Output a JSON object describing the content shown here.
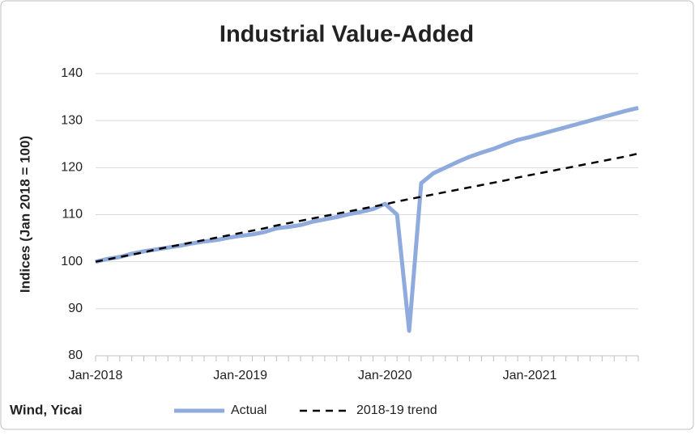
{
  "chart_data": {
    "type": "line",
    "title": "Industrial Value-Added",
    "y_label": "Indices (Jan 2018 = 100)",
    "source": "Wind, Yicai",
    "categories": [
      "Jan-2018",
      null,
      null,
      null,
      null,
      null,
      null,
      null,
      null,
      null,
      null,
      null,
      "Jan-2019",
      null,
      null,
      null,
      null,
      null,
      null,
      null,
      null,
      null,
      null,
      null,
      "Jan-2020",
      null,
      null,
      null,
      null,
      null,
      null,
      null,
      null,
      null,
      null,
      null,
      "Jan-2021",
      null,
      null,
      null,
      null,
      null,
      null,
      null,
      null,
      null
    ],
    "series": [
      {
        "name": "Actual",
        "color": "#8faadc",
        "style": "solid",
        "values": [
          100,
          100.6,
          101,
          101.7,
          102.2,
          102.6,
          103,
          103.4,
          103.9,
          104.3,
          104.6,
          105.1,
          105.5,
          105.8,
          106.3,
          107.1,
          107.4,
          107.8,
          108.5,
          109,
          109.5,
          110.1,
          110.6,
          111.2,
          112.3,
          110,
          85.3,
          116.7,
          118.8,
          120,
          121.2,
          122.3,
          123.2,
          124,
          125,
          125.9,
          126.5,
          127.2,
          127.9,
          128.6,
          129.3,
          130,
          130.7,
          131.4,
          132.1,
          132.7
        ]
      },
      {
        "name": "2018-19 trend",
        "color": "#000000",
        "style": "dashed",
        "values": [
          100.0,
          100.5,
          101.0,
          101.5,
          102.0,
          102.6,
          103.1,
          103.6,
          104.1,
          104.6,
          105.1,
          105.6,
          106.1,
          106.6,
          107.1,
          107.7,
          108.2,
          108.7,
          109.2,
          109.7,
          110.2,
          110.7,
          111.2,
          111.7,
          112.2,
          112.8,
          113.3,
          113.8,
          114.3,
          114.8,
          115.3,
          115.8,
          116.3,
          116.8,
          117.3,
          117.9,
          118.4,
          118.9,
          119.4,
          119.9,
          120.4,
          120.9,
          121.4,
          121.9,
          122.4,
          123.0
        ]
      }
    ],
    "ylim": [
      80,
      140
    ],
    "yticks": [
      80,
      90,
      100,
      110,
      120,
      130,
      140
    ],
    "grid": true,
    "legend": "bottom"
  }
}
